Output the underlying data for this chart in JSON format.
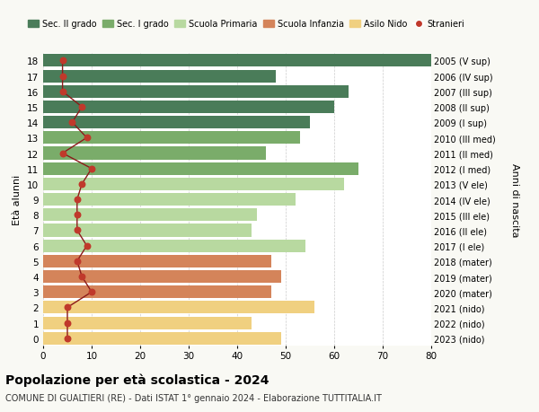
{
  "ages": [
    0,
    1,
    2,
    3,
    4,
    5,
    6,
    7,
    8,
    9,
    10,
    11,
    12,
    13,
    14,
    15,
    16,
    17,
    18
  ],
  "right_labels": [
    "2023 (nido)",
    "2022 (nido)",
    "2021 (nido)",
    "2020 (mater)",
    "2019 (mater)",
    "2018 (mater)",
    "2017 (I ele)",
    "2016 (II ele)",
    "2015 (III ele)",
    "2014 (IV ele)",
    "2013 (V ele)",
    "2012 (I med)",
    "2011 (II med)",
    "2010 (III med)",
    "2009 (I sup)",
    "2008 (II sup)",
    "2007 (III sup)",
    "2006 (IV sup)",
    "2005 (V sup)"
  ],
  "bar_values": [
    49,
    43,
    56,
    47,
    49,
    47,
    54,
    43,
    44,
    52,
    62,
    65,
    46,
    53,
    55,
    60,
    63,
    48,
    82
  ],
  "bar_colors": [
    "#f0d080",
    "#f0d080",
    "#f0d080",
    "#d4845a",
    "#d4845a",
    "#d4845a",
    "#b8d9a0",
    "#b8d9a0",
    "#b8d9a0",
    "#b8d9a0",
    "#b8d9a0",
    "#7aac6a",
    "#7aac6a",
    "#7aac6a",
    "#4a7c59",
    "#4a7c59",
    "#4a7c59",
    "#4a7c59",
    "#4a7c59"
  ],
  "stranieri_values": [
    5,
    5,
    5,
    10,
    8,
    7,
    9,
    7,
    7,
    7,
    8,
    10,
    4,
    9,
    6,
    8,
    4,
    4,
    4
  ],
  "legend_labels": [
    "Sec. II grado",
    "Sec. I grado",
    "Scuola Primaria",
    "Scuola Infanzia",
    "Asilo Nido",
    "Stranieri"
  ],
  "legend_colors": [
    "#4a7c59",
    "#7aac6a",
    "#b8d9a0",
    "#d4845a",
    "#f0d080",
    "#c0392b"
  ],
  "ylabel_left": "Età alunni",
  "ylabel_right": "Anni di nascita",
  "xlim": [
    0,
    80
  ],
  "title": "Popolazione per età scolastica - 2024",
  "subtitle": "COMUNE DI GUALTIERI (RE) - Dati ISTAT 1° gennaio 2024 - Elaborazione TUTTITALIA.IT",
  "bg_color": "#f9f9f4",
  "bar_bg_color": "#ffffff",
  "grid_color": "#cccccc"
}
